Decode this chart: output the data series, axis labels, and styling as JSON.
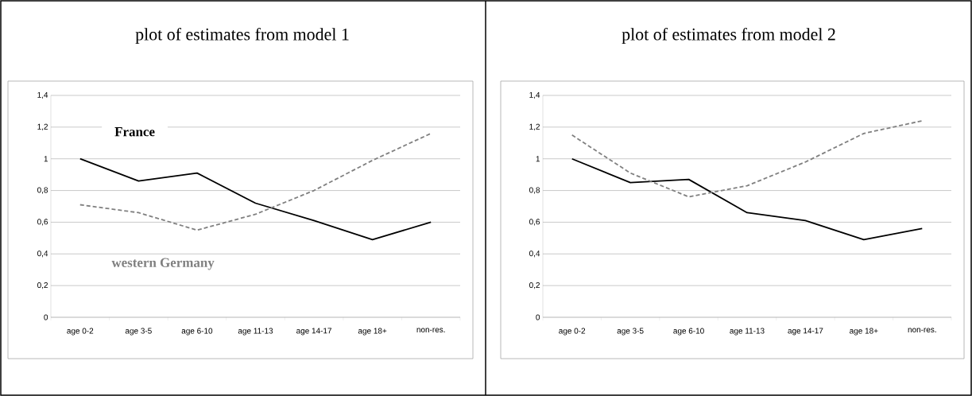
{
  "chart_data": [
    {
      "type": "line",
      "title": "plot of estimates from model 1",
      "categories": [
        "age  0-2",
        "age 3-5",
        "age 6-10",
        "age 11-13",
        "age 14-17",
        "age 18+",
        "non-res."
      ],
      "series": [
        {
          "name": "France",
          "color": "#000000",
          "line_style": "solid",
          "values": [
            1.0,
            0.86,
            0.91,
            0.72,
            0.61,
            0.49,
            0.6
          ]
        },
        {
          "name": "western Germany",
          "color": "#808080",
          "line_style": "dashed",
          "values": [
            0.71,
            0.66,
            0.55,
            0.65,
            0.8,
            0.99,
            1.16
          ]
        }
      ],
      "ylim": [
        0,
        1.4
      ],
      "yticks": [
        0,
        {
          "value": 0.2,
          "label": "0,2"
        },
        {
          "value": 0.4,
          "label": "0,4"
        },
        {
          "value": 0.6,
          "label": "0,6"
        },
        {
          "value": 0.8,
          "label": "0,8"
        },
        1,
        {
          "value": 1.2,
          "label": "1,2"
        },
        {
          "value": 1.4,
          "label": "1,4"
        }
      ],
      "grid": "y"
    },
    {
      "type": "line",
      "title": "plot of estimates from model 2",
      "categories": [
        "age  0-2",
        "age 3-5",
        "age 6-10",
        "age 11-13",
        "age 14-17",
        "age 18+",
        "non-res."
      ],
      "series": [
        {
          "color": "#000000",
          "line_style": "solid",
          "values": [
            1.0,
            0.85,
            0.87,
            0.66,
            0.61,
            0.49,
            0.56
          ]
        },
        {
          "color": "#808080",
          "line_style": "dashed",
          "values": [
            1.15,
            0.91,
            0.76,
            0.83,
            0.98,
            1.16,
            1.24
          ]
        }
      ],
      "ylim": [
        0,
        1.4
      ],
      "yticks": [
        0,
        {
          "value": 0.2,
          "label": "0,2"
        },
        {
          "value": 0.4,
          "label": "0,4"
        },
        {
          "value": 0.6,
          "label": "0,6"
        },
        {
          "value": 0.8,
          "label": "0,8"
        },
        1,
        {
          "value": 1.2,
          "label": "1,2"
        },
        {
          "value": 1.4,
          "label": "1,4"
        }
      ],
      "grid": "y"
    }
  ]
}
